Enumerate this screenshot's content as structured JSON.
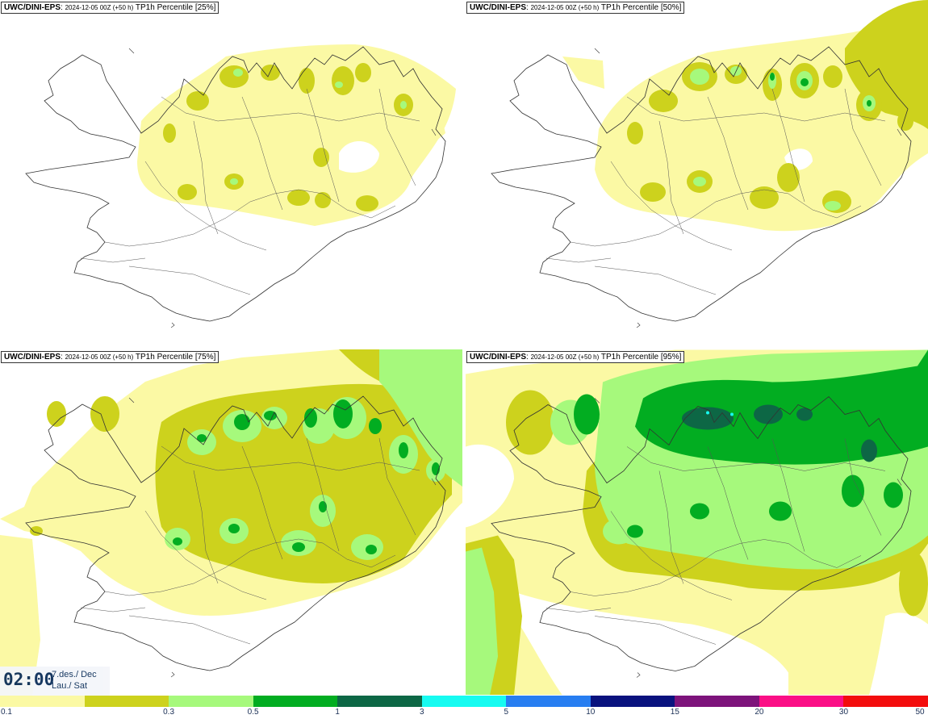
{
  "panels": [
    {
      "model": "UWC/DINI-EPS",
      "run": "2024-12-05 00Z (+50 h)",
      "field": "TP1h Percentile [25%]"
    },
    {
      "model": "UWC/DINI-EPS",
      "run": "2024-12-05 00Z (+50 h)",
      "field": "TP1h Percentile [50%]"
    },
    {
      "model": "UWC/DINI-EPS",
      "run": "2024-12-05 00Z (+50 h)",
      "field": "TP1h Percentile [75%]"
    },
    {
      "model": "UWC/DINI-EPS",
      "run": "2024-12-05 00Z (+50 h)",
      "field": "TP1h Percentile [95%]"
    }
  ],
  "valid_time": {
    "time": "02:00",
    "date_line": "7.des./ Dec",
    "day_line": "Lau./ Sat"
  },
  "legend": {
    "labels": [
      "0.1",
      "0.3",
      "0.5",
      "1",
      "3",
      "5",
      "10",
      "15",
      "20",
      "30",
      "50"
    ],
    "colors": [
      "#fbf9a4",
      "#cdd21d",
      "#a6f97c",
      "#02ad21",
      "#0d6745",
      "#17fbf1",
      "#277ef1",
      "#09127e",
      "#7d137b",
      "#fb0f86",
      "#f30d0d"
    ]
  },
  "colors": {
    "yellow": "#fbf9a4",
    "olive": "#cdd21d",
    "light_green": "#a6f97c",
    "green": "#02ad21",
    "dark_green": "#0d6745",
    "cyan": "#17fbf1"
  }
}
